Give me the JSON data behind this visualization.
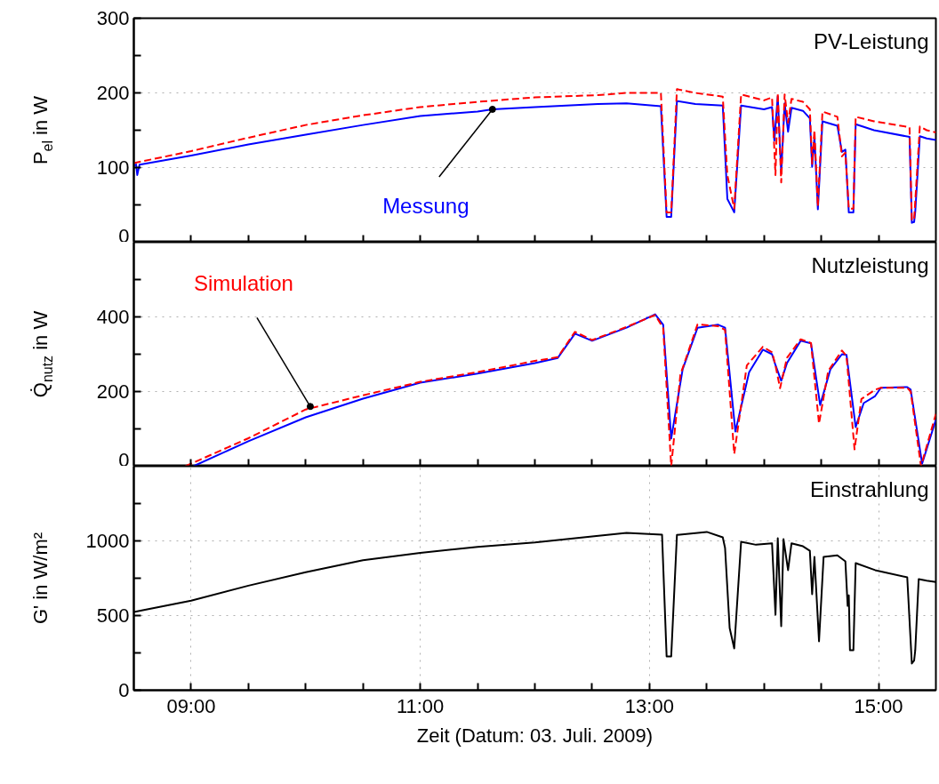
{
  "chart_data": [
    {
      "type": "line",
      "ylabel": "P$_{el}$ in W",
      "xlim": [
        8.5,
        15.5
      ],
      "ylim": [
        0,
        300
      ],
      "xticks": [
        {
          "value": 9,
          "label": null
        },
        {
          "value": 9.5,
          "label": null
        },
        {
          "value": 10,
          "label": null
        },
        {
          "value": 10.5,
          "label": null
        },
        {
          "value": 11,
          "label": null
        },
        {
          "value": 11.5,
          "label": null
        },
        {
          "value": 12,
          "label": null
        },
        {
          "value": 12.5,
          "label": null
        },
        {
          "value": 13,
          "label": null
        },
        {
          "value": 13.5,
          "label": null
        },
        {
          "value": 14,
          "label": null
        },
        {
          "value": 14.5,
          "label": null
        },
        {
          "value": 15,
          "label": null
        }
      ],
      "yticks": [
        0,
        {
          "value": 50,
          "label": null
        },
        100,
        {
          "value": 150,
          "label": null
        },
        200,
        {
          "value": 250,
          "label": null
        },
        300
      ],
      "tick_labels": "y",
      "grid": true,
      "annotations": [
        "PV-Leistung",
        {
          "text": "Messung",
          "x": 11.63,
          "y": 178
        }
      ],
      "series": [
        {
          "color": "#0000ff",
          "line_style": "solid",
          "x": [
            8.5,
            8.52,
            8.53,
            8.55,
            9.0,
            9.5,
            10.0,
            10.5,
            11.0,
            11.5,
            11.63,
            12.0,
            12.55,
            12.8,
            13.1,
            13.15,
            13.19,
            13.24,
            13.4,
            13.64,
            13.68,
            13.74,
            13.8,
            14.0,
            14.07,
            14.09,
            14.12,
            14.15,
            14.18,
            14.21,
            14.24,
            14.34,
            14.4,
            14.42,
            14.44,
            14.47,
            14.51,
            14.64,
            14.68,
            14.71,
            14.74,
            14.78,
            14.8,
            14.96,
            15.27,
            15.29,
            15.31,
            15.32,
            15.36,
            15.42,
            15.5
          ],
          "values": [
            103,
            104,
            90,
            104,
            116,
            131,
            144,
            157,
            169,
            175,
            178,
            181,
            185,
            186,
            182,
            34,
            34,
            189,
            185,
            183,
            58,
            40,
            183,
            178,
            181,
            136,
            195,
            93,
            186,
            148,
            180,
            176,
            166,
            101,
            141,
            44,
            162,
            156,
            121,
            124,
            40,
            40,
            158,
            150,
            141,
            26,
            27,
            41,
            142,
            139,
            137
          ]
        },
        {
          "color": "#ff0000",
          "line_style": "dashed",
          "x": [
            8.5,
            9.0,
            9.5,
            10.0,
            10.5,
            11.0,
            11.5,
            12.0,
            12.55,
            12.8,
            13.1,
            13.15,
            13.19,
            13.24,
            13.4,
            13.64,
            13.68,
            13.7,
            13.74,
            13.8,
            14.0,
            14.07,
            14.1,
            14.12,
            14.15,
            14.18,
            14.21,
            14.24,
            14.34,
            14.4,
            14.42,
            14.44,
            14.47,
            14.51,
            14.64,
            14.68,
            14.71,
            14.74,
            14.78,
            14.8,
            14.96,
            15.27,
            15.29,
            15.31,
            15.32,
            15.36,
            15.42,
            15.5
          ],
          "values": [
            106,
            122,
            140,
            157,
            170,
            181,
            188,
            194,
            197,
            200,
            200,
            40,
            40,
            205,
            200,
            195,
            90,
            75,
            45,
            198,
            190,
            194,
            90,
            200,
            80,
            198,
            160,
            192,
            188,
            178,
            105,
            150,
            48,
            175,
            168,
            115,
            120,
            45,
            45,
            168,
            162,
            154,
            30,
            30,
            55,
            155,
            150,
            147
          ]
        }
      ]
    },
    {
      "type": "line",
      "ylabel": "Q̇$_{nutz}$ in W",
      "xlim": [
        8.5,
        15.5
      ],
      "ylim": [
        0,
        600
      ],
      "xticks": [
        {
          "value": 9,
          "label": null
        },
        {
          "value": 9.5,
          "label": null
        },
        {
          "value": 10,
          "label": null
        },
        {
          "value": 10.5,
          "label": null
        },
        {
          "value": 11,
          "label": null
        },
        {
          "value": 11.5,
          "label": null
        },
        {
          "value": 12,
          "label": null
        },
        {
          "value": 12.5,
          "label": null
        },
        {
          "value": 13,
          "label": null
        },
        {
          "value": 13.5,
          "label": null
        },
        {
          "value": 14,
          "label": null
        },
        {
          "value": 14.5,
          "label": null
        },
        {
          "value": 15,
          "label": null
        }
      ],
      "yticks": [
        0,
        {
          "value": 100,
          "label": null
        },
        200,
        {
          "value": 300,
          "label": null
        },
        400,
        {
          "value": 500,
          "label": null
        }
      ],
      "tick_labels": "y",
      "grid": true,
      "annotations": [
        "Nutzleistung",
        {
          "text": "Simulation",
          "x": 10.04,
          "y": 160
        }
      ],
      "series": [
        {
          "color": "#0000ff",
          "line_style": "solid",
          "x": [
            9.02,
            9.5,
            10.0,
            10.5,
            11.0,
            11.5,
            12.0,
            12.2,
            12.35,
            12.5,
            12.8,
            13.05,
            13.12,
            13.19,
            13.29,
            13.42,
            13.6,
            13.66,
            13.75,
            13.87,
            13.99,
            14.07,
            14.1,
            14.15,
            14.2,
            14.32,
            14.41,
            14.49,
            14.58,
            14.68,
            14.72,
            14.8,
            14.87,
            14.97,
            15.02,
            15.25,
            15.28,
            15.38,
            15.5
          ],
          "values": [
            0,
            67,
            131,
            181,
            224,
            248,
            276,
            290,
            355,
            336,
            371,
            407,
            379,
            74,
            260,
            371,
            379,
            371,
            93,
            252,
            312,
            300,
            271,
            229,
            276,
            336,
            329,
            164,
            260,
            300,
            298,
            105,
            169,
            188,
            210,
            212,
            205,
            7,
            125
          ]
        },
        {
          "color": "#ff0000",
          "line_style": "dashed",
          "x": [
            8.95,
            9.5,
            10.0,
            10.5,
            11.0,
            11.5,
            12.0,
            12.2,
            12.35,
            12.5,
            12.8,
            13.05,
            13.12,
            13.19,
            13.27,
            13.42,
            13.6,
            13.66,
            13.74,
            13.85,
            13.99,
            14.07,
            14.1,
            14.14,
            14.2,
            14.32,
            14.41,
            14.48,
            14.56,
            14.68,
            14.72,
            14.79,
            14.85,
            14.97,
            15.02,
            15.25,
            15.28,
            15.37,
            15.5
          ],
          "values": [
            0,
            75,
            152,
            190,
            226,
            252,
            282,
            292,
            360,
            338,
            373,
            405,
            370,
            0,
            245,
            380,
            375,
            365,
            33,
            270,
            320,
            305,
            270,
            209,
            290,
            340,
            330,
            114,
            255,
            310,
            295,
            45,
            180,
            205,
            210,
            210,
            200,
            0,
            140
          ]
        }
      ]
    },
    {
      "type": "line",
      "ylabel": "G' in W/m²",
      "xlabel": "Zeit (Datum: 03. Juli. 2009)",
      "xlim": [
        8.5,
        15.5
      ],
      "ylim": [
        0,
        1500
      ],
      "xticks": [
        {
          "value": 9,
          "label": "09:00"
        },
        {
          "value": 9.5,
          "label": null
        },
        {
          "value": 10,
          "label": null
        },
        {
          "value": 10.5,
          "label": null
        },
        {
          "value": 11,
          "label": "11:00"
        },
        {
          "value": 11.5,
          "label": null
        },
        {
          "value": 12,
          "label": null
        },
        {
          "value": 12.5,
          "label": null
        },
        {
          "value": 13,
          "label": "13:00"
        },
        {
          "value": 13.5,
          "label": null
        },
        {
          "value": 14,
          "label": null
        },
        {
          "value": 14.5,
          "label": null
        },
        {
          "value": 15,
          "label": "15:00"
        }
      ],
      "yticks": [
        0,
        {
          "value": 250,
          "label": null
        },
        500,
        {
          "value": 750,
          "label": null
        },
        1000,
        {
          "value": 1250,
          "label": null
        }
      ],
      "grid": true,
      "annotations": [
        "Einstrahlung"
      ],
      "series": [
        {
          "color": "#000000",
          "line_style": "solid",
          "x": [
            8.5,
            9.0,
            9.5,
            10.0,
            10.5,
            11.0,
            11.5,
            12.0,
            12.5,
            12.8,
            13.11,
            13.15,
            13.19,
            13.24,
            13.5,
            13.64,
            13.66,
            13.7,
            13.74,
            13.8,
            13.93,
            14.07,
            14.1,
            14.12,
            14.15,
            14.17,
            14.21,
            14.24,
            14.34,
            14.4,
            14.42,
            14.44,
            14.48,
            14.52,
            14.64,
            14.71,
            14.73,
            14.74,
            14.75,
            14.78,
            14.8,
            14.97,
            15.25,
            15.29,
            15.31,
            15.32,
            15.35,
            15.42,
            15.5
          ],
          "values": [
            524,
            600,
            700,
            790,
            870,
            920,
            960,
            990,
            1030,
            1053,
            1042,
            226,
            226,
            1040,
            1060,
            1024,
            952,
            417,
            280,
            994,
            974,
            984,
            506,
            1018,
            429,
            1012,
            804,
            984,
            964,
            934,
            643,
            893,
            327,
            893,
            903,
            863,
            565,
            635,
            268,
            268,
            851,
            804,
            756,
            179,
            198,
            268,
            744,
            734,
            725
          ]
        }
      ]
    }
  ]
}
